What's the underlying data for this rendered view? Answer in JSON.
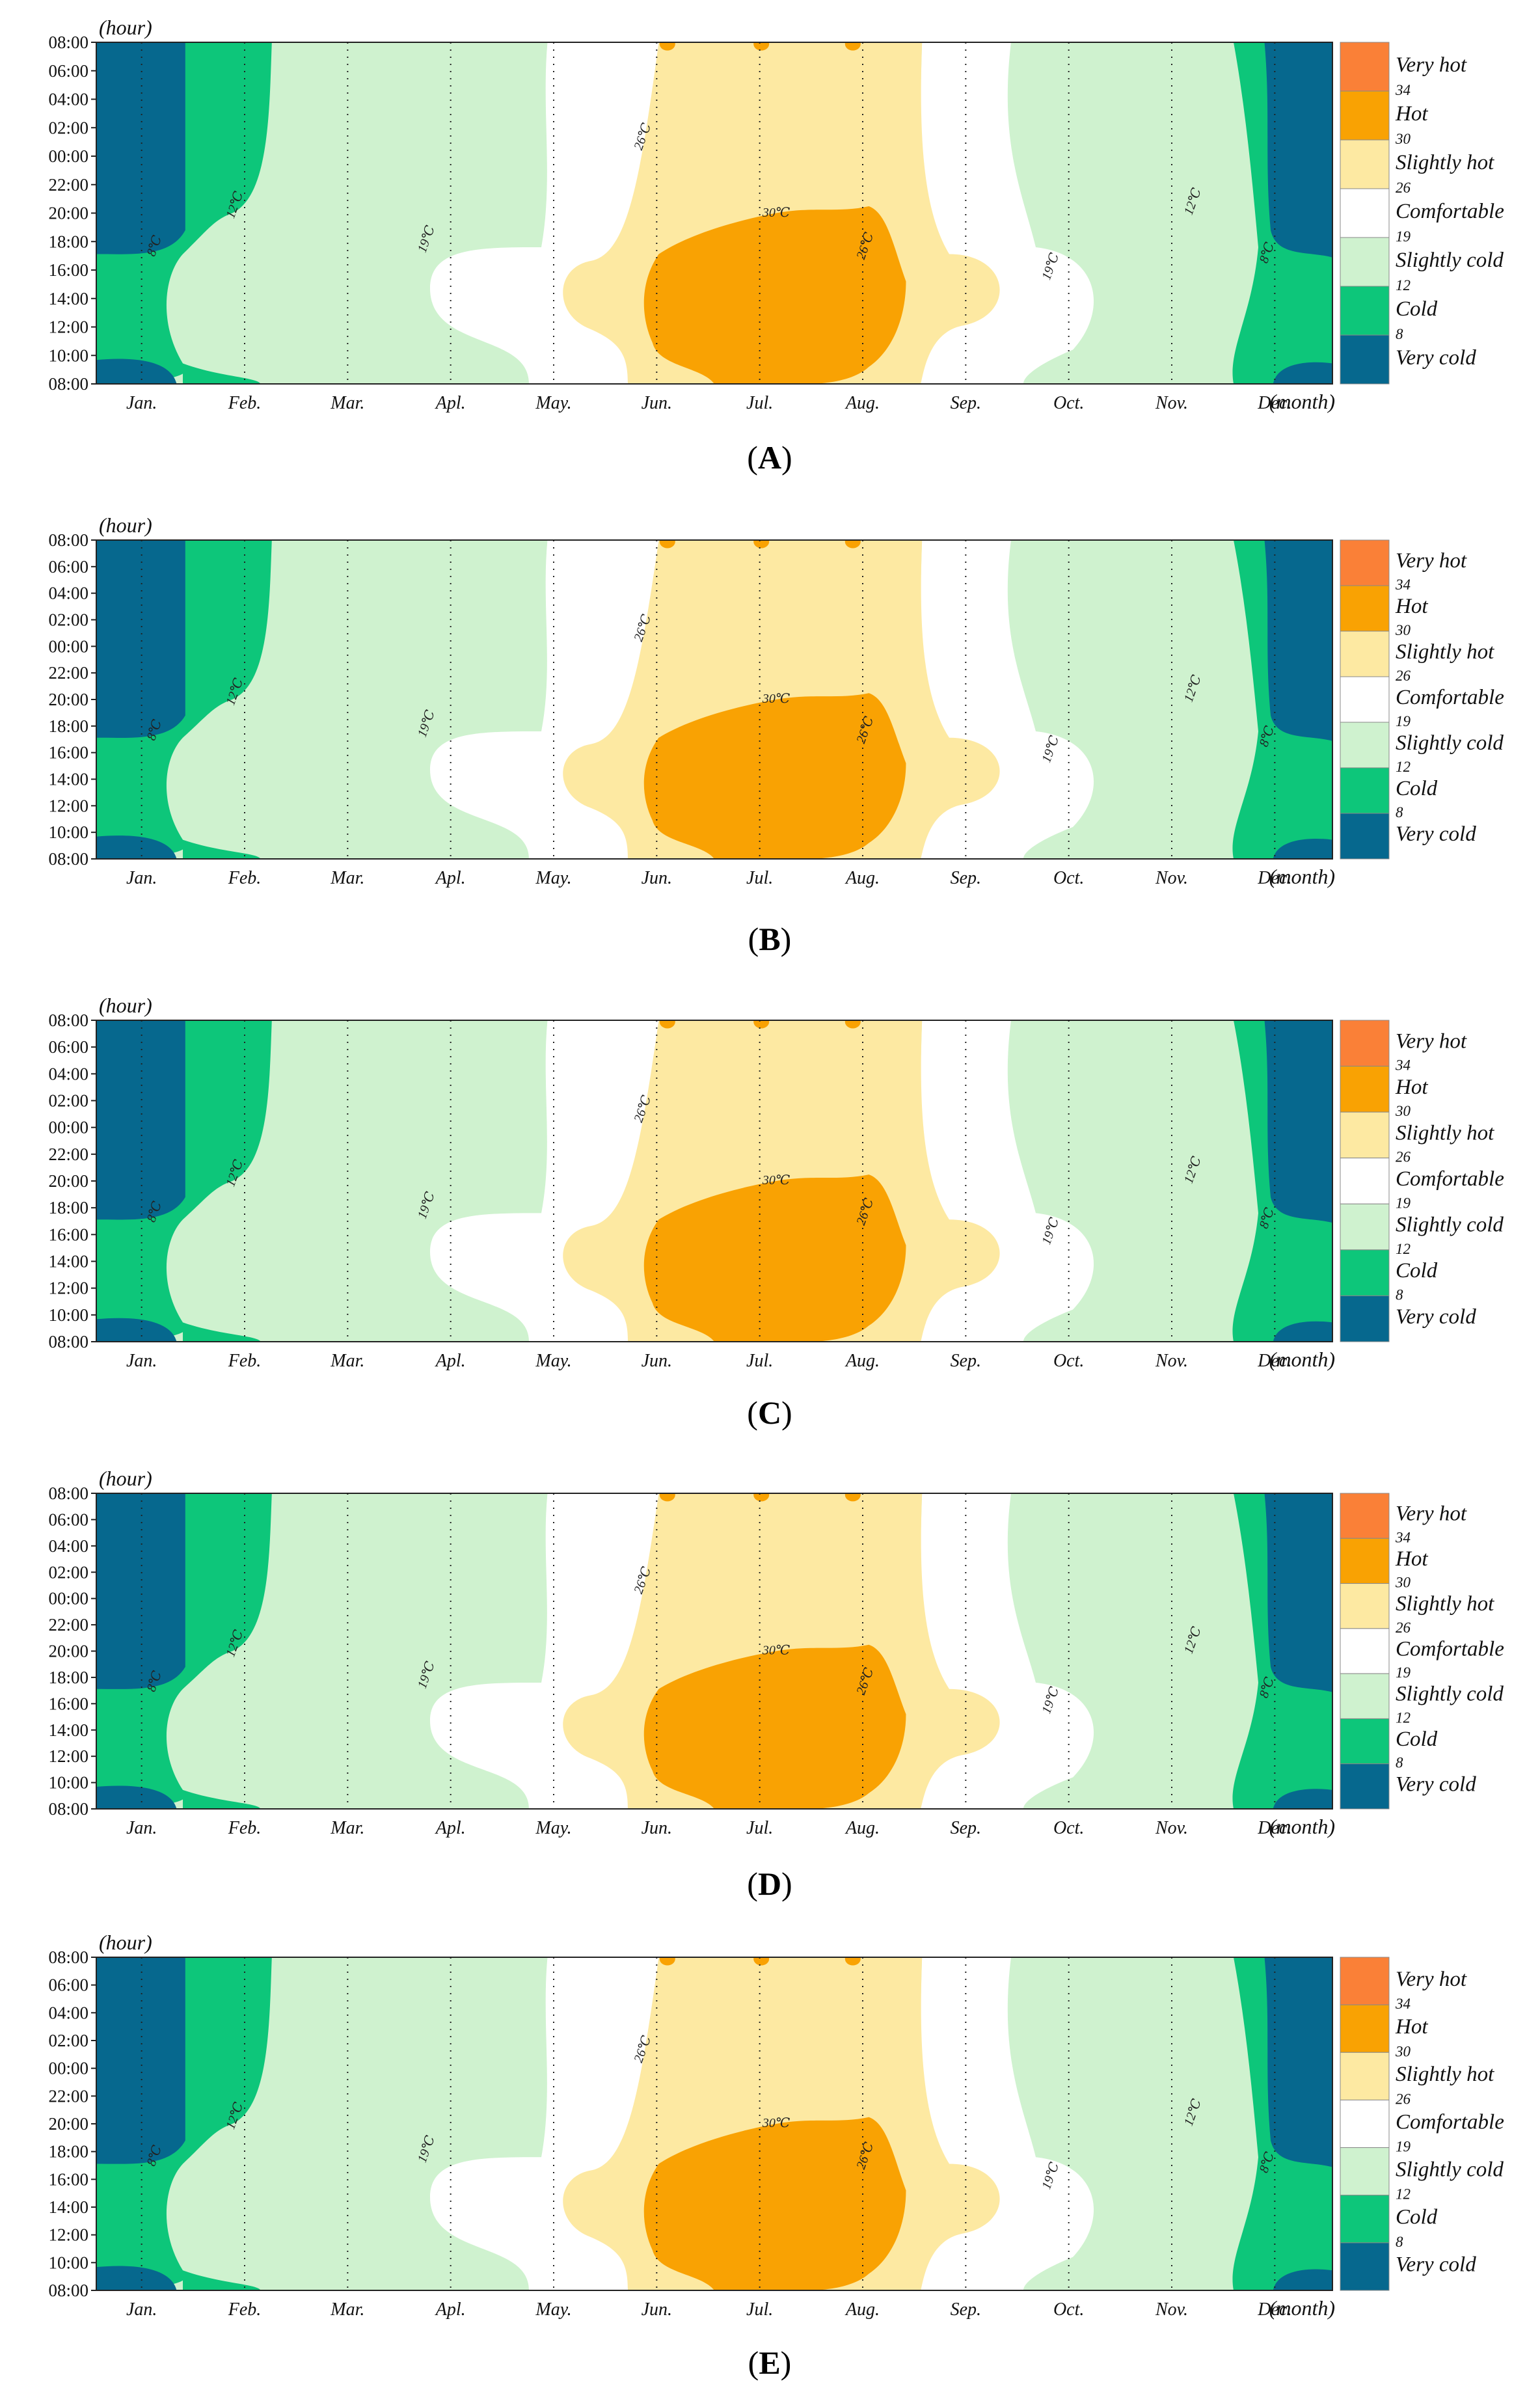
{
  "chart_data": {
    "type": "heatmap",
    "description_units": "hour of day vs month, thermal comfort zones",
    "y_ticks": [
      "08:00",
      "06:00",
      "04:00",
      "02:00",
      "00:00",
      "22:00",
      "20:00",
      "18:00",
      "16:00",
      "14:00",
      "12:00",
      "10:00",
      "08:00"
    ],
    "x_ticks": [
      "Jan.",
      "Feb.",
      "Mar.",
      "Apl.",
      "May.",
      "Jun.",
      "Jul.",
      "Aug.",
      "Sep.",
      "Oct.",
      "Nov.",
      "Dec."
    ],
    "x_axis_title": "(month)",
    "y_axis_title": "(hour)",
    "legend": [
      {
        "label": "Very hot",
        "color": "#fa8037"
      },
      {
        "label": "Hot",
        "color": "#f9a203"
      },
      {
        "label": "Slightly hot",
        "color": "#fde9a2"
      },
      {
        "label": "Comfortable",
        "color": "#ffffff"
      },
      {
        "label": "Slightly cold",
        "color": "#cff2cf"
      },
      {
        "label": "Cold",
        "color": "#0dc67a"
      },
      {
        "label": "Very cold",
        "color": "#06688e"
      }
    ],
    "legend_thresholds": [
      "34",
      "30",
      "26",
      "19",
      "12",
      "8"
    ],
    "contour_labels": [
      "8℃",
      "12℃",
      "19℃",
      "26℃",
      "30℃",
      "26℃",
      "19℃",
      "12℃",
      "8℃"
    ],
    "panels": [
      "A",
      "B",
      "C",
      "D",
      "E"
    ]
  },
  "colors": {
    "very_hot": "#fa8037",
    "hot": "#f9a203",
    "slightly_hot": "#fde9a2",
    "comfortable": "#ffffff",
    "slightly_cold": "#cff2cf",
    "cold": "#0dc67a",
    "very_cold": "#06688e"
  }
}
